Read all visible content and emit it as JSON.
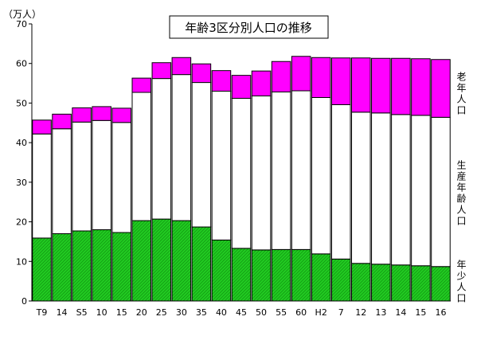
{
  "chart_data": {
    "type": "bar",
    "stacked": true,
    "title": "年齢3区分別人口の推移",
    "ylabel": "（万人）",
    "ylim": [
      0,
      70
    ],
    "yticks": [
      0,
      10,
      20,
      30,
      40,
      50,
      60,
      70
    ],
    "grid": false,
    "legend": "right",
    "categories": [
      "T9",
      "14",
      "S5",
      "10",
      "15",
      "20",
      "25",
      "30",
      "35",
      "40",
      "45",
      "50",
      "55",
      "60",
      "H2",
      "7",
      "12",
      "13",
      "14",
      "15",
      "16"
    ],
    "series": [
      {
        "name": "年少人口",
        "color": "#22cc22",
        "values": [
          15.9,
          17.0,
          17.7,
          18.0,
          17.3,
          20.3,
          20.7,
          20.3,
          18.7,
          15.4,
          13.3,
          12.9,
          13.0,
          13.0,
          11.9,
          10.6,
          9.5,
          9.3,
          9.1,
          8.9,
          8.7
        ]
      },
      {
        "name": "生産年齢人口",
        "color": "#ffffff",
        "values": [
          26.3,
          26.5,
          27.5,
          27.6,
          27.8,
          32.4,
          35.5,
          36.9,
          36.5,
          37.6,
          37.9,
          38.9,
          39.8,
          40.1,
          39.5,
          39.0,
          38.2,
          38.2,
          38.0,
          38.0,
          37.7
        ]
      },
      {
        "name": "老年人口",
        "color": "#ff00ff",
        "values": [
          3.5,
          3.7,
          3.6,
          3.5,
          3.6,
          3.6,
          4.0,
          4.3,
          4.7,
          5.2,
          5.8,
          6.3,
          7.7,
          8.7,
          10.1,
          11.8,
          13.7,
          13.8,
          14.2,
          14.3,
          14.6
        ]
      }
    ]
  }
}
